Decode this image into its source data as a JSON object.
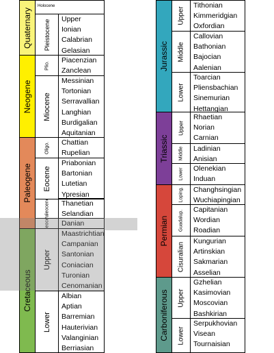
{
  "colors": {
    "quaternary": "#f9f47a",
    "neogene": "#fff000",
    "paleogene": "#e3895a",
    "cretaceous": "#7fba4f",
    "jurassic": "#33a7bd",
    "triassic": "#7d3f98",
    "permian": "#d6473b",
    "carboniferous": "#5e9a8c",
    "highlight": "#9e9e9e"
  },
  "left": {
    "quaternary": {
      "label": "Quaternary",
      "epochs": [
        {
          "label": "Holocene",
          "stages": []
        },
        {
          "label": "Pleistocene",
          "stages": [
            "Upper",
            "Ionian",
            "Calabrian",
            "Gelasian"
          ]
        }
      ]
    },
    "neogene": {
      "label": "Neogene",
      "epochs": [
        {
          "label": "Plio.",
          "stages": [
            "Piacenzian",
            "Zanclean"
          ]
        },
        {
          "label": "Miocene",
          "stages": [
            "Messinian",
            "Tortonian",
            "Serravallian",
            "Langhian",
            "Burdigalian",
            "Aquitanian"
          ]
        }
      ]
    },
    "paleogene": {
      "label": "Paleogene",
      "epochs": [
        {
          "label": "Oligo.",
          "stages": [
            "Chattian",
            "Rupelian"
          ]
        },
        {
          "label": "Eocene",
          "stages": [
            "Priabonian",
            "Bartonian",
            "Lutetian",
            "Ypresian"
          ]
        },
        {
          "label": "Paleocene",
          "stages": [
            "Thanetian",
            "Selandian"
          ]
        },
        {
          "label": "Paleocene",
          "stages": [
            "Danian"
          ]
        }
      ]
    },
    "cretaceous": {
      "label": "Cretaceous",
      "epochs": [
        {
          "label": "Upper",
          "stages": [
            "Maastrichtian",
            "Campanian",
            "Santonian",
            "Coniacian",
            "Turonian",
            "Cenomanian"
          ]
        },
        {
          "label": "Lower",
          "stages": [
            "Albian",
            "Aptian",
            "Barremian",
            "Hauterivian",
            "Valanginian",
            "Berriasian"
          ]
        }
      ]
    }
  },
  "right": {
    "jurassic": {
      "label": "Jurassic",
      "epochs": [
        {
          "label": "Upper",
          "stages": [
            "Tithonian",
            "Kimmeridgian",
            "Oxfordian"
          ]
        },
        {
          "label": "Middle",
          "stages": [
            "Callovian",
            "Bathonian",
            "Bajocian",
            "Aalenian"
          ]
        },
        {
          "label": "Lower",
          "stages": [
            "Toarcian",
            "Pliensbachian",
            "Sinemurian",
            "Hettangian"
          ]
        }
      ]
    },
    "triassic": {
      "label": "Triassic",
      "epochs": [
        {
          "label": "Upper",
          "stages": [
            "Rhaetian",
            "Norian",
            "Carnian"
          ]
        },
        {
          "label": "Middle",
          "stages": [
            "Ladinian",
            "Anisian"
          ]
        },
        {
          "label": "Lower",
          "stages": [
            "Olenekian",
            "Induan"
          ]
        }
      ]
    },
    "permian": {
      "label": "Permian",
      "epochs": [
        {
          "label": "Loping.",
          "stages": [
            "Changhsingian",
            "Wuchiapingian"
          ]
        },
        {
          "label": "Guadalup.",
          "stages": [
            "Capitanian",
            "Wordian",
            "Roadian"
          ]
        },
        {
          "label": "Cisuralian",
          "stages": [
            "Kungurian",
            "Artinskian",
            "Sakmarian",
            "Asselian"
          ]
        }
      ]
    },
    "carboniferous": {
      "label": "Carboniferous",
      "epochs": [
        {
          "label": "Upper",
          "stages": [
            "Gzhelian",
            "Kasimovian",
            "Moscovian",
            "Bashkirian"
          ]
        },
        {
          "label": "Lower",
          "stages": [
            "Serpukhovian",
            "Visean",
            "Tournaisian"
          ]
        }
      ]
    }
  }
}
